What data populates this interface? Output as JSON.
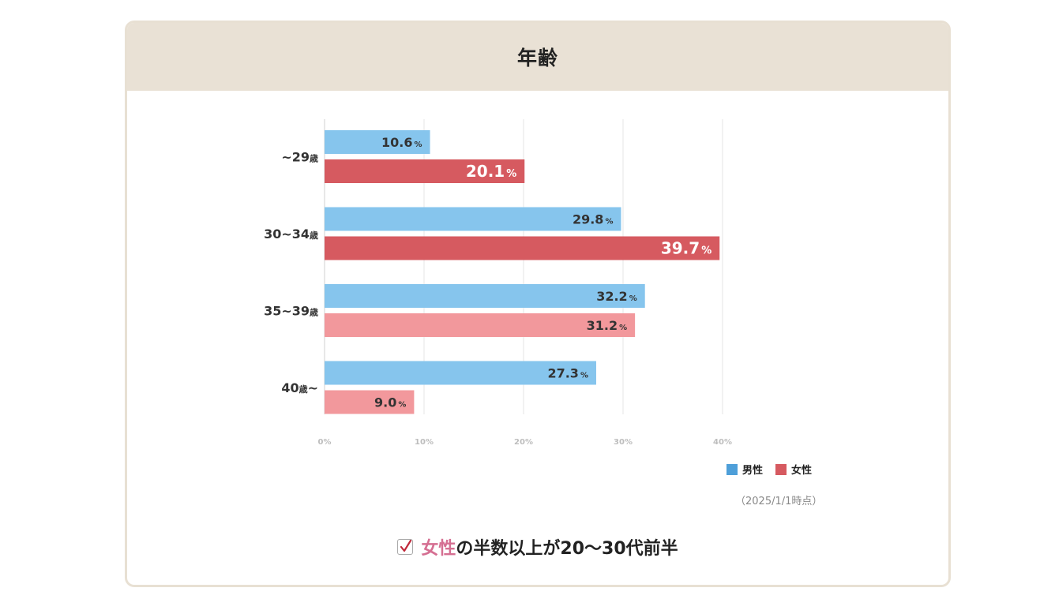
{
  "card": {
    "title": "年齢"
  },
  "chart_data": {
    "type": "bar",
    "orientation": "horizontal",
    "categories": [
      "~29歳",
      "30~34歳",
      "35~39歳",
      "40歳~"
    ],
    "series": [
      {
        "name": "男性",
        "values": [
          10.6,
          29.8,
          32.2,
          27.3
        ]
      },
      {
        "name": "女性",
        "values": [
          20.1,
          39.7,
          31.2,
          9.0
        ]
      }
    ],
    "value_suffix": "%",
    "xlim": [
      0,
      40
    ],
    "x_ticks": [
      "0%",
      "10%",
      "20%",
      "30%",
      "40%"
    ],
    "grid": true,
    "legend": "bottom-right",
    "colors": {
      "male": "#86c5ed",
      "female_highlight": "#d65a60",
      "female": "#f2989c",
      "legend_male": "#4e9fd9",
      "legend_female": "#d65a60"
    },
    "female_highlight_categories": [
      0,
      1
    ]
  },
  "legend": {
    "male": "男性",
    "female": "女性"
  },
  "note": "（2025/1/1時点）",
  "summary": {
    "highlight": "女性",
    "rest": "の半数以上が20〜30代前半"
  }
}
